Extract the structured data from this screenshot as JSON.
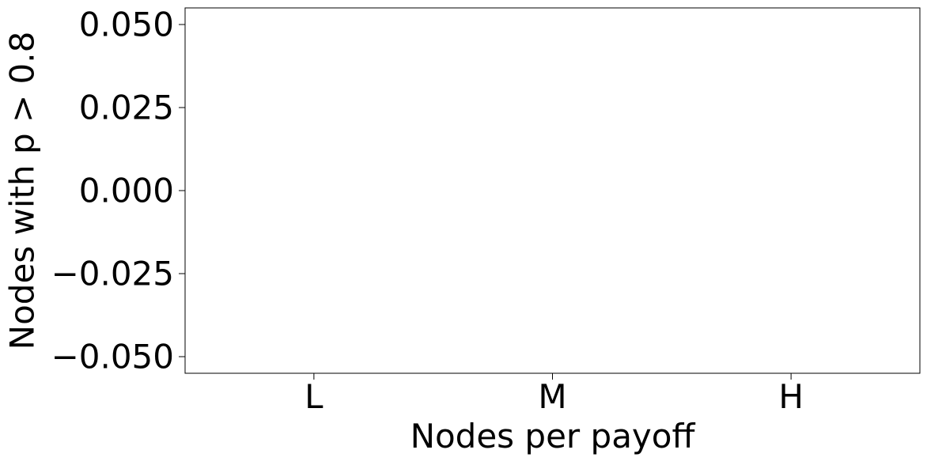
{
  "chart_data": {
    "type": "bar",
    "categories": [
      "L",
      "M",
      "H"
    ],
    "series": [
      {
        "values": [
          0,
          0,
          0
        ]
      }
    ],
    "xlabel": "Nodes per payoff",
    "ylabel": "Nodes with p > 0.8",
    "ylim": [
      -0.055,
      0.055
    ],
    "yticks": [
      0.05,
      0.025,
      0.0,
      -0.025,
      -0.05
    ],
    "ytick_labels": [
      "0.050",
      "0.025",
      "0.000",
      "−0.025",
      "−0.050"
    ],
    "grid": false,
    "legend": "none"
  }
}
